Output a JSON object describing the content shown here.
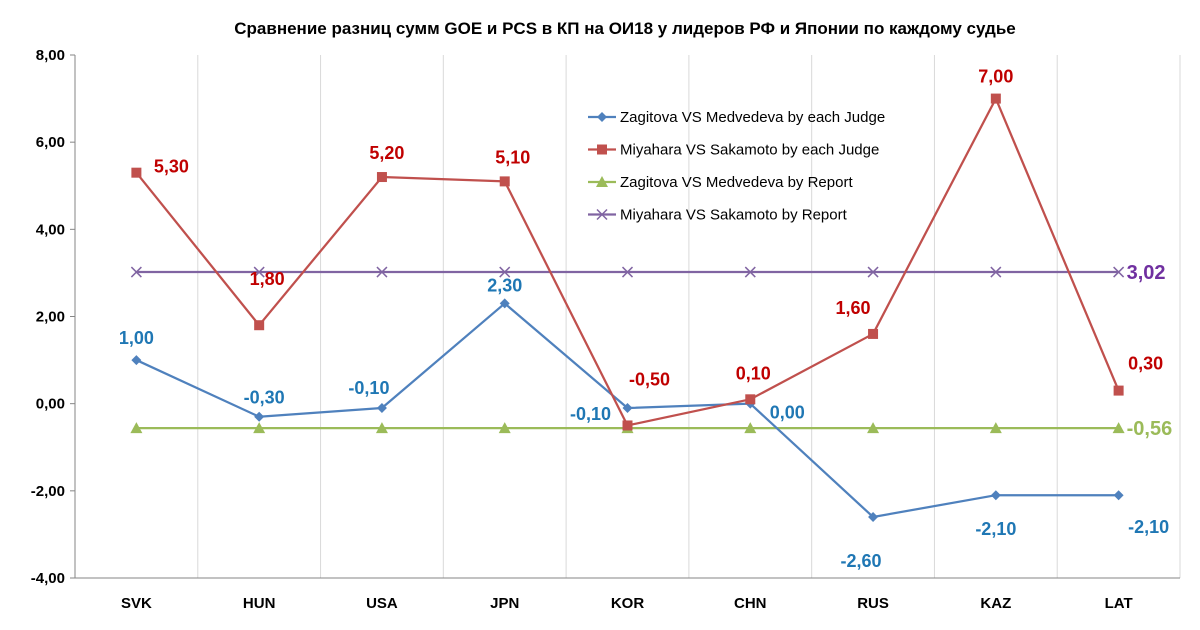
{
  "chart_data": {
    "type": "line",
    "title": "Сравнение разниц сумм GOE и PCS в КП на ОИ18 у лидеров РФ и Японии по каждому судье",
    "xlabel": "",
    "ylabel": "",
    "categories": [
      "SVK",
      "HUN",
      "USA",
      "JPN",
      "KOR",
      "CHN",
      "RUS",
      "KAZ",
      "LAT"
    ],
    "ylim": [
      -4,
      8
    ],
    "yticks": [
      -4,
      -2,
      0,
      2,
      4,
      6,
      8
    ],
    "ytick_labels": [
      "-4,00",
      "-2,00",
      "0,00",
      "2,00",
      "4,00",
      "6,00",
      "8,00"
    ],
    "grid": "vertical",
    "legend_position": "top-right",
    "series": [
      {
        "name": "Zagitova VS Medvedeva by each Judge",
        "color": "#4f81bd",
        "label_color": "#1f77b4",
        "marker": "diamond",
        "values": [
          1.0,
          -0.3,
          -0.1,
          2.3,
          -0.1,
          0.0,
          -2.6,
          -2.1,
          -2.1
        ],
        "labels": [
          "1,00",
          "-0,30",
          "-0,10",
          "2,30",
          "-0,10",
          "0,00",
          "-2,60",
          "-2,10",
          "-2,10"
        ]
      },
      {
        "name": "Miyahara VS Sakamoto by each Judge",
        "color": "#c0504d",
        "label_color": "#c00000",
        "marker": "square",
        "values": [
          5.3,
          1.8,
          5.2,
          5.1,
          -0.5,
          0.1,
          1.6,
          7.0,
          0.3
        ],
        "labels": [
          "5,30",
          "1,80",
          "5,20",
          "5,10",
          "-0,50",
          "0,10",
          "1,60",
          "7,00",
          "0,30"
        ]
      },
      {
        "name": "Zagitova VS Medvedeva by Report",
        "color": "#9bbb59",
        "label_color": "#9bbb59",
        "marker": "triangle",
        "values": [
          -0.56,
          -0.56,
          -0.56,
          -0.56,
          -0.56,
          -0.56,
          -0.56,
          -0.56,
          -0.56
        ],
        "end_label": "-0,56"
      },
      {
        "name": "Miyahara VS Sakamoto by Report",
        "color": "#8064a2",
        "label_color": "#7030a0",
        "marker": "cross",
        "values": [
          3.02,
          3.02,
          3.02,
          3.02,
          3.02,
          3.02,
          3.02,
          3.02,
          3.02
        ],
        "end_label": "3,02"
      }
    ]
  }
}
